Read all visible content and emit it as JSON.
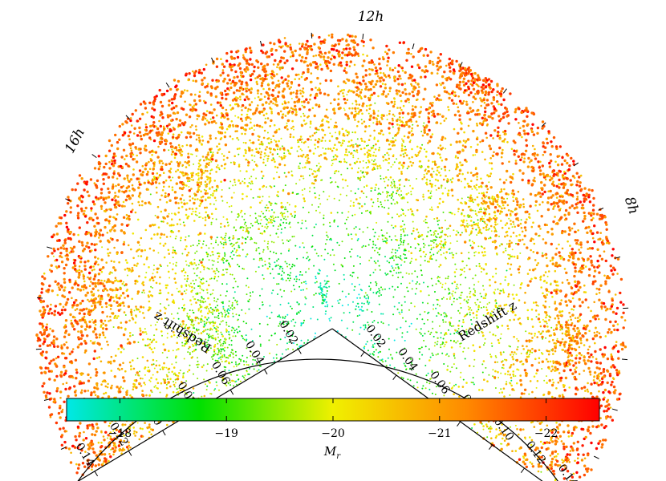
{
  "chart_data": {
    "type": "scatter",
    "subtype": "redshift-wedge (polar cone diagram)",
    "ra_labels": [
      "8h",
      "12h",
      "16h"
    ],
    "left_axis": {
      "label": "Redshift z",
      "ticks": [
        0.02,
        0.04,
        0.06,
        0.08,
        0.1,
        0.12,
        0.14
      ],
      "tick_labels": [
        "0.02",
        "0.04",
        "0.06",
        "0.08",
        "0.10",
        "0.12",
        "0.14"
      ]
    },
    "right_axis": {
      "label": "Redshift z",
      "ticks": [
        0.02,
        0.04,
        0.06,
        0.08,
        0.1,
        0.12,
        0.14
      ],
      "tick_labels": [
        "0.02",
        "0.04",
        "0.06",
        "0.08",
        "0.10",
        "0.12",
        "0.14"
      ]
    },
    "z_range": [
      0,
      0.15
    ],
    "ra_range_hours": [
      8,
      16.8
    ],
    "colorbar": {
      "label": "Mr",
      "range": [
        -17.5,
        -22.5
      ],
      "ticks": [
        -18,
        -19,
        -20,
        -21,
        -22
      ],
      "tick_labels": [
        "−18",
        "−19",
        "−20",
        "−21",
        "−22"
      ],
      "colors": [
        "#00e8e8",
        "#00e000",
        "#f0f000",
        "#ff8a00",
        "#ff0000"
      ]
    },
    "points_note_count": 9000
  }
}
